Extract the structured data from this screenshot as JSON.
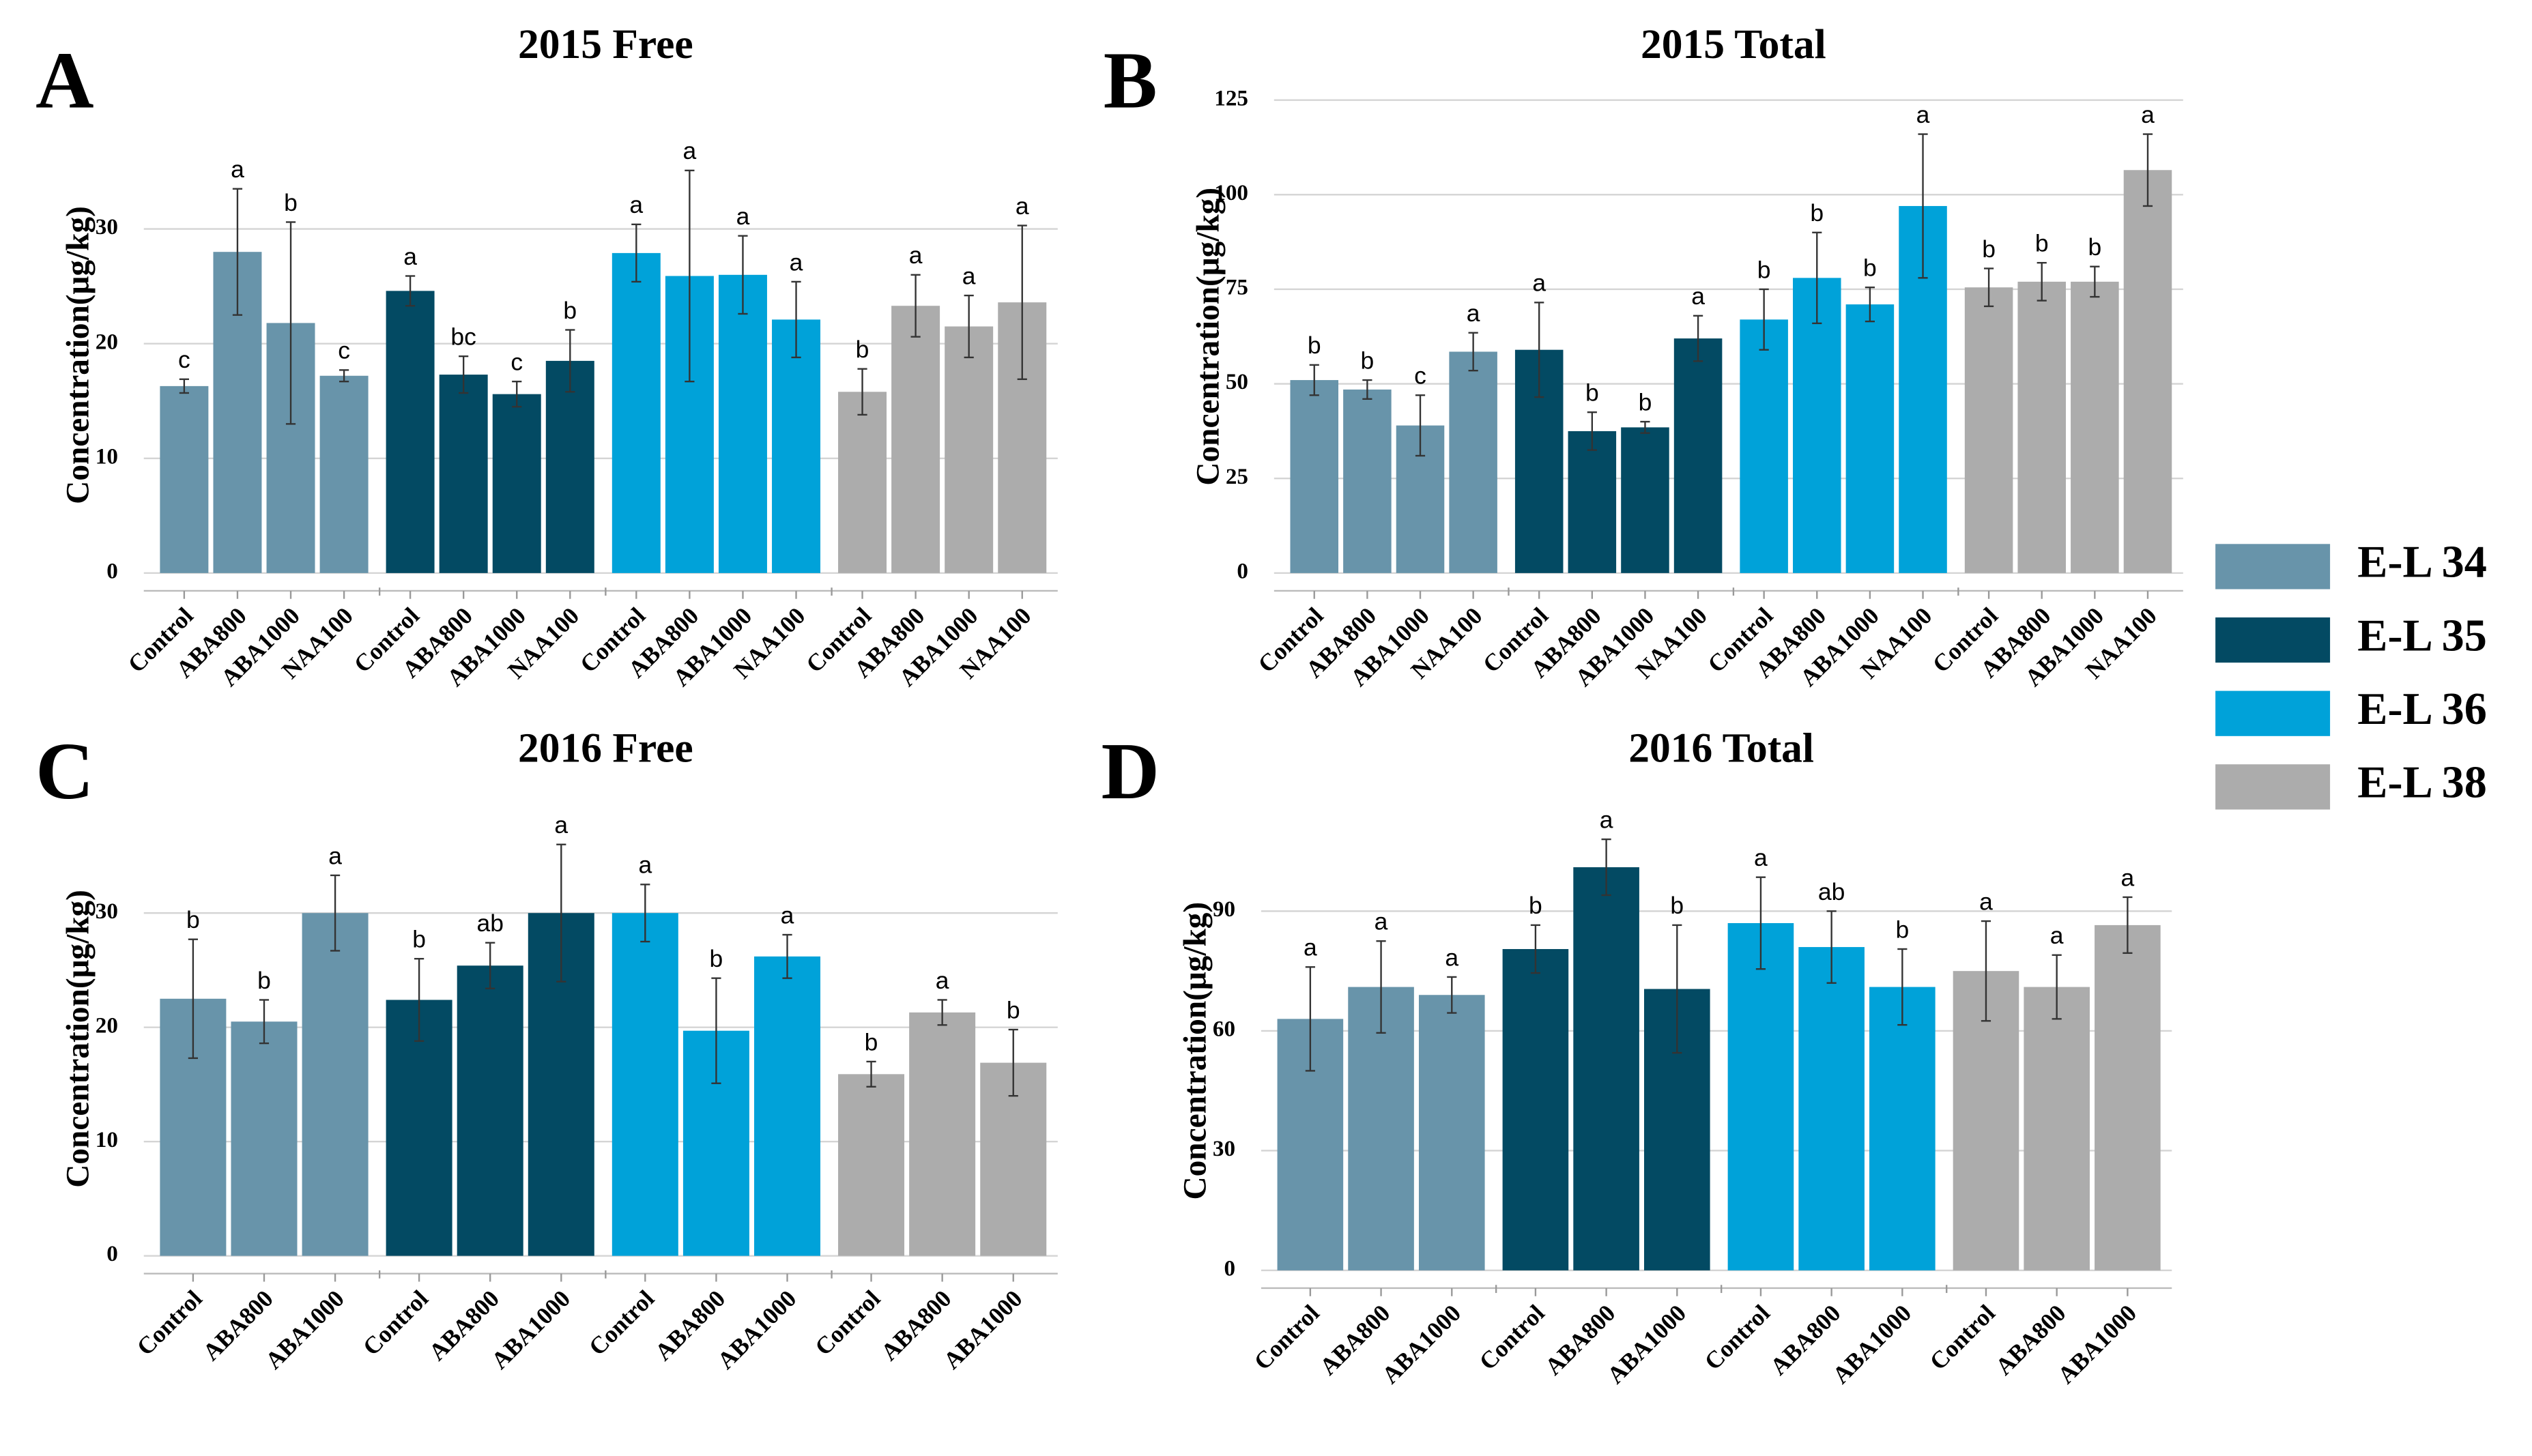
{
  "legend": {
    "series": [
      {
        "name": "E-L 34",
        "color": "#6894aa"
      },
      {
        "name": "E-L 35",
        "color": "#034a63"
      },
      {
        "name": "E-L 36",
        "color": "#00a2d9"
      },
      {
        "name": "E-L 38",
        "color": "#acacac"
      }
    ]
  },
  "chart_data": [
    {
      "type": "bar",
      "panel": "A",
      "title": "2015 Free",
      "y_label": "Concentration(μg/kg)",
      "categories": [
        "Control",
        "ABA800",
        "ABA1000",
        "NAA100"
      ],
      "series": [
        {
          "values": [
            16.3,
            28,
            21.8,
            17.2
          ],
          "errors": [
            0.6,
            5.5,
            8.8,
            0.5
          ],
          "letters": [
            "c",
            "a",
            "b",
            "c"
          ]
        },
        {
          "values": [
            24.6,
            17.3,
            15.6,
            18.5
          ],
          "errors": [
            1.3,
            1.6,
            1.1,
            2.7
          ],
          "letters": [
            "a",
            "bc",
            "c",
            "b"
          ]
        },
        {
          "values": [
            27.9,
            25.9,
            26,
            22.1
          ],
          "errors": [
            2.5,
            9.2,
            3.4,
            3.3
          ],
          "letters": [
            "a",
            "a",
            "a",
            "a"
          ]
        },
        {
          "values": [
            15.8,
            23.3,
            21.5,
            23.6
          ],
          "errors": [
            2,
            2.7,
            2.7,
            6.7
          ],
          "letters": [
            "b",
            "a",
            "a",
            "a"
          ]
        }
      ],
      "ylim": [
        0,
        38
      ],
      "yticks": [
        0,
        10,
        20,
        30
      ],
      "grid": true
    },
    {
      "type": "bar",
      "panel": "B",
      "title": "2015 Total",
      "y_label": "Concentration(μg/kg)",
      "categories": [
        "Control",
        "ABA800",
        "ABA1000",
        "NAA100"
      ],
      "series": [
        {
          "values": [
            51,
            48.5,
            39,
            58.5
          ],
          "errors": [
            4,
            2.5,
            8,
            5
          ],
          "letters": [
            "b",
            "b",
            "c",
            "a"
          ]
        },
        {
          "values": [
            59,
            37.5,
            38.5,
            62
          ],
          "errors": [
            12.5,
            5,
            1.5,
            6
          ],
          "letters": [
            "a",
            "b",
            "b",
            "a"
          ]
        },
        {
          "values": [
            67,
            78,
            71,
            97
          ],
          "errors": [
            8,
            12,
            4.5,
            19
          ],
          "letters": [
            "b",
            "b",
            "b",
            "a"
          ]
        },
        {
          "values": [
            75.5,
            77,
            77,
            106.5
          ],
          "errors": [
            5,
            5,
            4,
            9.5
          ],
          "letters": [
            "b",
            "b",
            "b",
            "a"
          ]
        }
      ],
      "ylim": [
        0,
        125
      ],
      "yticks": [
        0,
        25,
        50,
        75,
        100,
        125
      ],
      "grid": true
    },
    {
      "type": "bar",
      "panel": "C",
      "title": "2016 Free",
      "y_label": "Concentration(μg/kg)",
      "categories": [
        "Control",
        "ABA800",
        "ABA1000"
      ],
      "series": [
        {
          "values": [
            22.5,
            20.5,
            30
          ],
          "errors": [
            5.2,
            1.9,
            3.3
          ],
          "letters": [
            "b",
            "b",
            "a"
          ]
        },
        {
          "values": [
            22.4,
            25.4,
            30
          ],
          "errors": [
            3.6,
            2,
            6
          ],
          "letters": [
            "b",
            "ab",
            "a"
          ]
        },
        {
          "values": [
            30,
            19.7,
            26.2
          ],
          "errors": [
            2.5,
            4.6,
            1.9
          ],
          "letters": [
            "a",
            "b",
            "a"
          ]
        },
        {
          "values": [
            15.9,
            21.3,
            16.9
          ],
          "errors": [
            1.1,
            1.1,
            2.9
          ],
          "letters": [
            "b",
            "a",
            "b"
          ]
        }
      ],
      "ylim": [
        0,
        38
      ],
      "yticks": [
        0,
        10,
        20,
        30
      ],
      "grid": true
    },
    {
      "type": "bar",
      "panel": "D",
      "title": "2016 Total",
      "y_label": "Concentration(μg/kg)",
      "categories": [
        "Control",
        "ABA800",
        "ABA1000"
      ],
      "series": [
        {
          "values": [
            63,
            71,
            69
          ],
          "errors": [
            13,
            11.5,
            4.5
          ],
          "letters": [
            "a",
            "a",
            "a"
          ]
        },
        {
          "values": [
            80.5,
            101,
            70.5
          ],
          "errors": [
            6,
            7,
            16
          ],
          "letters": [
            "b",
            "a",
            "b"
          ]
        },
        {
          "values": [
            87,
            81,
            71
          ],
          "errors": [
            11.5,
            9,
            9.5
          ],
          "letters": [
            "a",
            "ab",
            "b"
          ]
        },
        {
          "values": [
            75,
            71,
            86.5
          ],
          "errors": [
            12.5,
            8,
            7
          ],
          "letters": [
            "a",
            "a",
            "a"
          ]
        }
      ],
      "ylim": [
        0,
        110
      ],
      "yticks": [
        0,
        30,
        60,
        90
      ],
      "grid": true
    }
  ]
}
